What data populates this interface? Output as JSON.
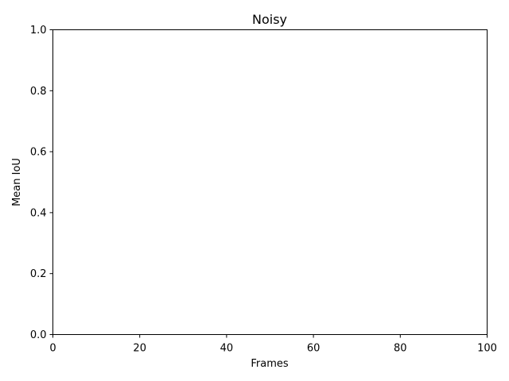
{
  "chart_data": {
    "type": "line",
    "title": "Noisy",
    "xlabel": "Frames",
    "ylabel": "Mean IoU",
    "xlim": [
      0,
      100
    ],
    "ylim": [
      0,
      1
    ],
    "x_ticks": [
      0,
      20,
      40,
      60,
      80,
      100
    ],
    "x_tick_labels": [
      "0",
      "20",
      "40",
      "60",
      "80",
      "100"
    ],
    "y_ticks": [
      0,
      0.2,
      0.4,
      0.6,
      0.8,
      1.0
    ],
    "y_tick_labels": [
      "0.0",
      "0.2",
      "0.4",
      "0.6",
      "0.8",
      "1.0"
    ],
    "grid": false,
    "series": []
  }
}
